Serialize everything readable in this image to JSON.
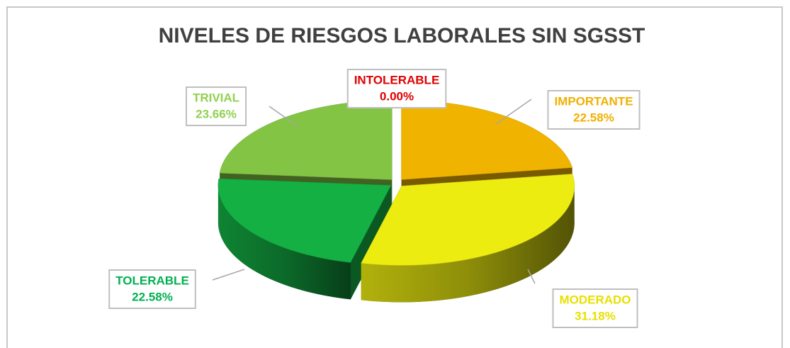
{
  "chart_data": {
    "type": "pie",
    "title": "NIVELES DE RIESGOS LABORALES SIN SGSST",
    "categories": [
      "INTOLERABLE",
      "IMPORTANTE",
      "MODERADO",
      "TOLERABLE",
      "TRIVIAL"
    ],
    "values": [
      0,
      22.58,
      31.18,
      22.58,
      23.66
    ],
    "value_labels": [
      "0.00%",
      "22.58%",
      "31.18%",
      "22.58%",
      "23.66%"
    ],
    "colors": [
      "#e00000",
      "#f0b400",
      "#ecec10",
      "#14b044",
      "#84c444"
    ],
    "label_colors": [
      "#e00000",
      "#f0b000",
      "#e8e000",
      "#00b050",
      "#92d050"
    ]
  }
}
